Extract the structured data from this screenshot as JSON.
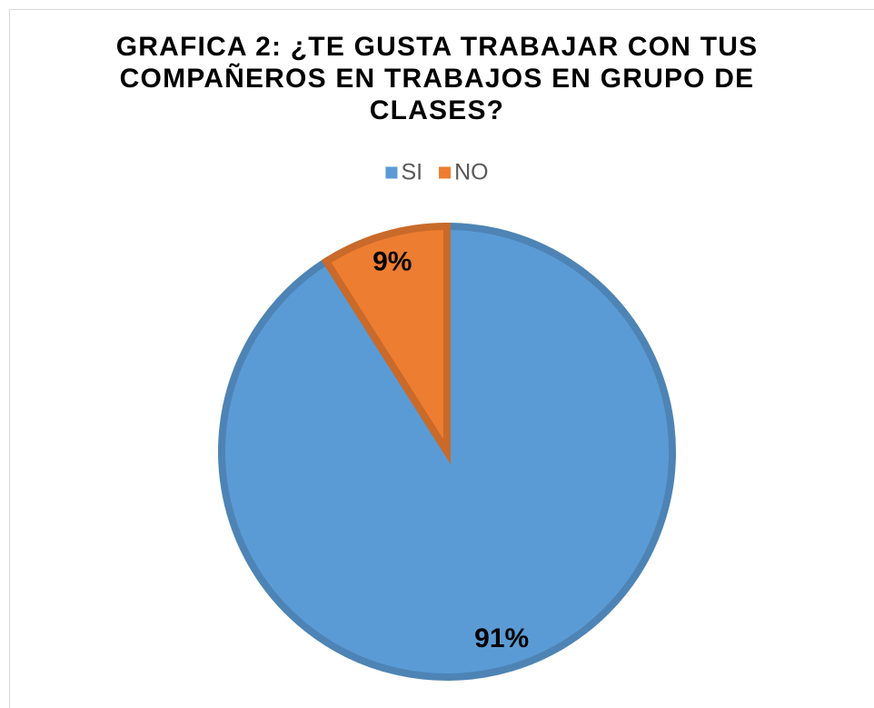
{
  "chart_data": {
    "type": "pie",
    "title": "GRAFICA 2: ¿TE GUSTA TRABAJAR CON TUS COMPAÑEROS EN TRABAJOS EN GRUPO DE CLASES?",
    "categories": [
      "SI",
      "NO"
    ],
    "values": [
      91,
      9
    ],
    "value_labels": [
      "91%",
      "9%"
    ],
    "colors": [
      "#5b9bd5",
      "#ed7d31"
    ],
    "legend": "top"
  }
}
